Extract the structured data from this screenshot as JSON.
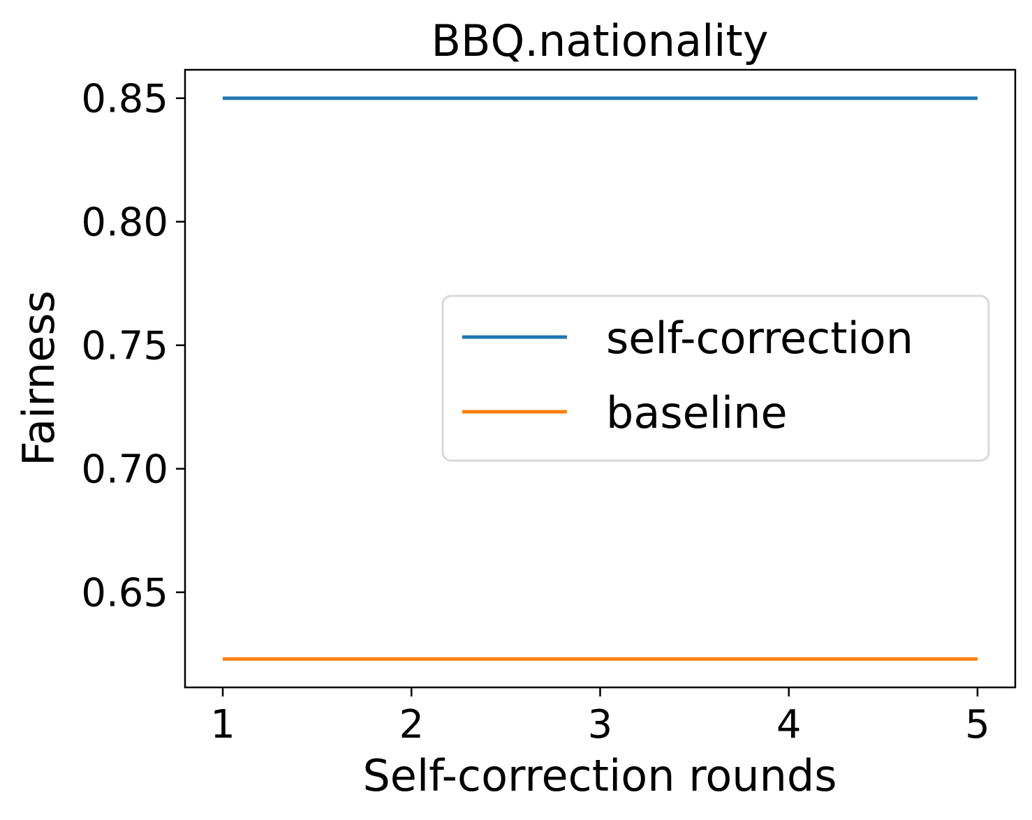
{
  "chart_data": {
    "type": "line",
    "title": "BBQ.nationality",
    "xlabel": "Self-correction rounds",
    "ylabel": "Fairness",
    "x": [
      1,
      2,
      3,
      4,
      5
    ],
    "xticks": [
      "1",
      "2",
      "3",
      "4",
      "5"
    ],
    "yticks": [
      "0.65",
      "0.70",
      "0.75",
      "0.80",
      "0.85"
    ],
    "ytick_values": [
      0.65,
      0.7,
      0.75,
      0.8,
      0.85
    ],
    "xlim": [
      0.8,
      5.2
    ],
    "ylim": [
      0.6115,
      0.8615
    ],
    "grid": false,
    "legend_position": "center-right",
    "series": [
      {
        "name": "self-correction",
        "color": "#1f77b4",
        "values": [
          0.85,
          0.85,
          0.85,
          0.85,
          0.85
        ]
      },
      {
        "name": "baseline",
        "color": "#ff7f0e",
        "values": [
          0.623,
          0.623,
          0.623,
          0.623,
          0.623
        ]
      }
    ]
  }
}
